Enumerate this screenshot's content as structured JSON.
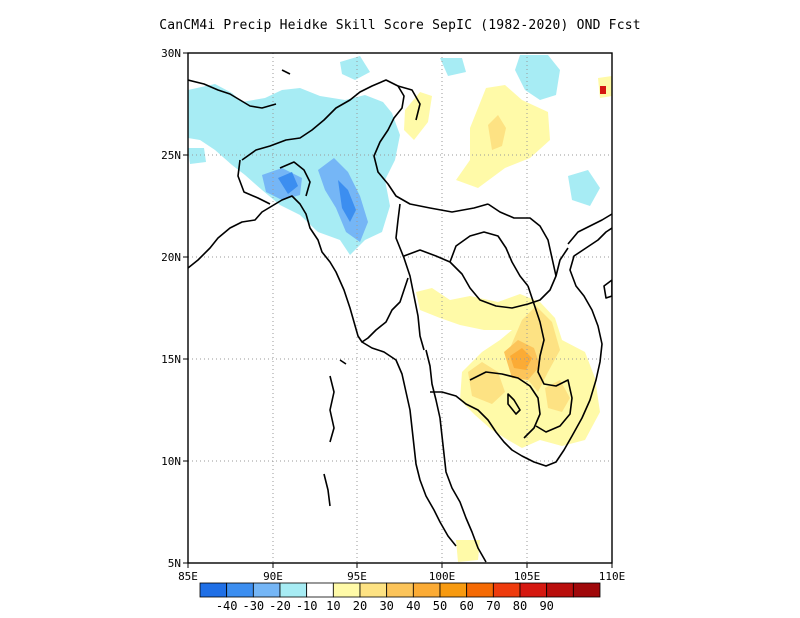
{
  "title": "CanCM4i Precip Heidke Skill Score SepIC (1982-2020) OND Fcst",
  "map": {
    "lon_range": [
      85,
      110
    ],
    "lat_range": [
      5,
      30
    ],
    "lon_ticks": [
      "85E",
      "90E",
      "95E",
      "100E",
      "105E",
      "110E"
    ],
    "lat_ticks": [
      "5N",
      "10N",
      "15N",
      "20N",
      "25N",
      "30N"
    ],
    "grid": "dotted"
  },
  "colorbar": {
    "colors": [
      "#1f6fe6",
      "#3c8ef0",
      "#75b6f6",
      "#a7ecf4",
      "#ffffff",
      "#fffaa8",
      "#fde283",
      "#fcc45a",
      "#fbab35",
      "#f79a10",
      "#f56a04",
      "#ee3b0d",
      "#d51810",
      "#b90e0c",
      "#a0080a"
    ],
    "labels": [
      "-40",
      "-30",
      "-20",
      "-10",
      "10",
      "20",
      "30",
      "40",
      "50",
      "60",
      "70",
      "80",
      "90"
    ]
  }
}
